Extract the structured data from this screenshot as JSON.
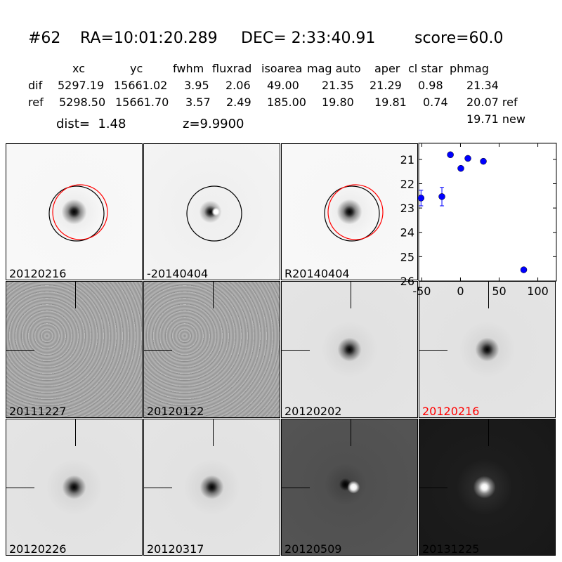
{
  "header": {
    "id": "#62",
    "ra": "RA=10:01:20.289",
    "dec": "DEC= 2:33:40.91",
    "score": "score=60.0"
  },
  "table": {
    "columns": [
      "xc",
      "yc",
      "fwhm",
      "fluxrad",
      "isoarea",
      "mag auto",
      "aper",
      "cl star",
      "phmag"
    ],
    "rows": [
      {
        "label": "dif",
        "values": [
          "5297.19",
          "15661.02",
          "3.95",
          "2.06",
          "49.00",
          "21.35",
          "21.29",
          "0.98",
          "21.34"
        ]
      },
      {
        "label": "ref",
        "values": [
          "5298.50",
          "15661.70",
          "3.57",
          "2.49",
          "185.00",
          "19.80",
          "19.81",
          "0.74",
          "20.07 ref"
        ]
      }
    ],
    "new_phmag": "19.71 new",
    "dist": "dist=  1.48",
    "z": "z=9.9900"
  },
  "panels": [
    {
      "label": "20120216",
      "style": "light-dark-blob",
      "label_color": "#000000",
      "circles": [
        "black",
        "red"
      ]
    },
    {
      "label": "-20140404",
      "style": "light-dipole",
      "label_color": "#000000",
      "circles": [
        "black"
      ]
    },
    {
      "label": "R20140404",
      "style": "light-dark-blob",
      "label_color": "#000000",
      "circles": [
        "black",
        "red"
      ]
    },
    {
      "label": "20111227",
      "style": "noisy-gray",
      "label_color": "#000000"
    },
    {
      "label": "20120122",
      "style": "noisy-gray",
      "label_color": "#000000"
    },
    {
      "label": "20120202",
      "style": "light-gray",
      "label_color": "#000000"
    },
    {
      "label": "20120216",
      "style": "light-gray",
      "label_color": "#ff0000"
    },
    {
      "label": "20120226",
      "style": "light-gray",
      "label_color": "#000000"
    },
    {
      "label": "20120317",
      "style": "light-gray",
      "label_color": "#000000"
    },
    {
      "label": "20120509",
      "style": "dark-gray-dipole",
      "label_color": "#000000"
    },
    {
      "label": "20131225",
      "style": "black-white-blob",
      "label_color": "#000000"
    }
  ],
  "chart_data": {
    "type": "scatter",
    "x": [
      -51,
      -24,
      -13,
      0.5,
      9.6,
      29.6,
      81.8
    ],
    "y": [
      22.59,
      22.53,
      20.81,
      21.37,
      20.96,
      21.08,
      25.54
    ],
    "yerr": [
      0.32,
      0.38,
      0,
      0,
      0,
      0,
      0.06
    ],
    "xlim": [
      -54,
      124
    ],
    "ylim": [
      26,
      20.34
    ],
    "y_inverted": true,
    "xticks": [
      "-50",
      "0",
      "50",
      "100"
    ],
    "xtick_values": [
      -50,
      0,
      50,
      100
    ],
    "yticks": [
      "21",
      "22",
      "23",
      "24",
      "25",
      "26"
    ],
    "ytick_values": [
      21,
      22,
      23,
      24,
      25,
      26
    ],
    "color": "#0000ff",
    "grid": false
  }
}
